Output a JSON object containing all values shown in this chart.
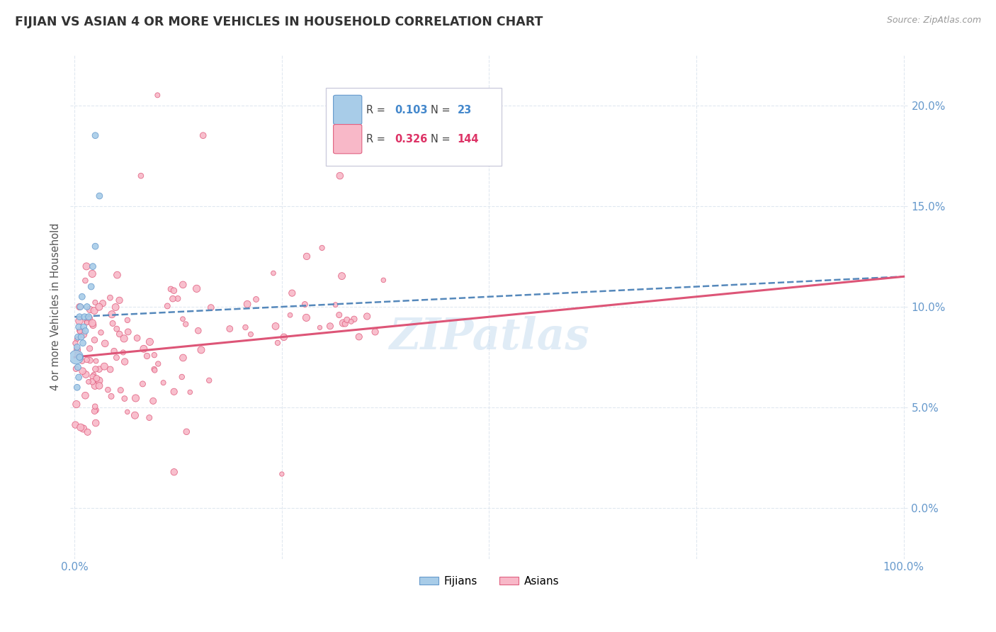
{
  "title": "FIJIAN VS ASIAN 4 OR MORE VEHICLES IN HOUSEHOLD CORRELATION CHART",
  "source_text": "Source: ZipAtlas.com",
  "ylabel": "4 or more Vehicles in Household",
  "fijian_color": "#a8cce8",
  "fijian_edge_color": "#6699cc",
  "asian_color": "#f8b8c8",
  "asian_edge_color": "#e06080",
  "fijian_line_color": "#5588bb",
  "asian_line_color": "#dd5577",
  "fijian_R": "0.103",
  "fijian_N": "23",
  "asian_R": "0.326",
  "asian_N": "144",
  "legend_R_color_fijian": "#4488cc",
  "legend_N_color_fijian": "#4488cc",
  "legend_R_color_asian": "#dd3366",
  "legend_N_color_asian": "#dd3366",
  "watermark": "ZIPatlas",
  "watermark_color": "#c8ddf0",
  "title_color": "#333333",
  "source_color": "#999999",
  "ylabel_color": "#555555",
  "tick_color": "#6699cc",
  "grid_color": "#e0e8f0"
}
